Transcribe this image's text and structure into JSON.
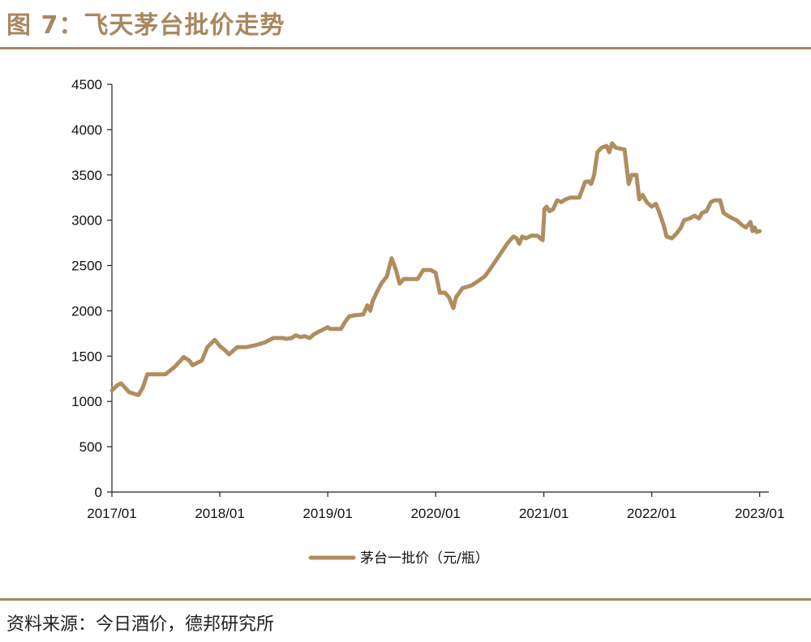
{
  "header": {
    "title": "图 7：飞天茅台批价走势"
  },
  "footer": {
    "source": "资料来源：今日酒价，德邦研究所"
  },
  "colors": {
    "accent": "#a88760",
    "series": "#b08d5f"
  },
  "chart_data": {
    "type": "line",
    "title": "",
    "xlabel": "",
    "ylabel": "",
    "ylim": [
      0,
      4500
    ],
    "yticks": [
      0,
      500,
      1000,
      1500,
      2000,
      2500,
      3000,
      3500,
      4000,
      4500
    ],
    "xlim": [
      "2017-01",
      "2023-02"
    ],
    "xticks": [
      "2017/01",
      "2018/01",
      "2019/01",
      "2020/01",
      "2021/01",
      "2022/01",
      "2023/01"
    ],
    "grid": false,
    "legend": "bottom",
    "series": [
      {
        "name": "茅台一批价（元/瓶）",
        "points": [
          [
            "2017-01-01",
            1120
          ],
          [
            "2017-01-20",
            1180
          ],
          [
            "2017-02-01",
            1200
          ],
          [
            "2017-02-15",
            1150
          ],
          [
            "2017-03-01",
            1100
          ],
          [
            "2017-04-01",
            1070
          ],
          [
            "2017-04-15",
            1150
          ],
          [
            "2017-05-01",
            1300
          ],
          [
            "2017-06-01",
            1300
          ],
          [
            "2017-07-01",
            1300
          ],
          [
            "2017-08-01",
            1380
          ],
          [
            "2017-09-01",
            1490
          ],
          [
            "2017-09-20",
            1450
          ],
          [
            "2017-10-01",
            1400
          ],
          [
            "2017-11-01",
            1450
          ],
          [
            "2017-11-20",
            1600
          ],
          [
            "2017-12-15",
            1680
          ],
          [
            "2018-01-01",
            1610
          ],
          [
            "2018-01-20",
            1560
          ],
          [
            "2018-02-01",
            1520
          ],
          [
            "2018-03-01",
            1600
          ],
          [
            "2018-04-01",
            1600
          ],
          [
            "2018-05-01",
            1620
          ],
          [
            "2018-06-01",
            1650
          ],
          [
            "2018-07-01",
            1700
          ],
          [
            "2018-08-01",
            1700
          ],
          [
            "2018-08-15",
            1690
          ],
          [
            "2018-09-01",
            1700
          ],
          [
            "2018-09-15",
            1730
          ],
          [
            "2018-10-01",
            1710
          ],
          [
            "2018-10-15",
            1720
          ],
          [
            "2018-11-01",
            1700
          ],
          [
            "2018-11-15",
            1740
          ],
          [
            "2018-12-01",
            1770
          ],
          [
            "2018-12-15",
            1790
          ],
          [
            "2019-01-01",
            1820
          ],
          [
            "2019-01-10",
            1800
          ],
          [
            "2019-02-01",
            1800
          ],
          [
            "2019-02-15",
            1800
          ],
          [
            "2019-03-01",
            1880
          ],
          [
            "2019-03-15",
            1940
          ],
          [
            "2019-04-01",
            1950
          ],
          [
            "2019-05-01",
            1960
          ],
          [
            "2019-05-15",
            2060
          ],
          [
            "2019-05-25",
            2000
          ],
          [
            "2019-06-01",
            2100
          ],
          [
            "2019-06-15",
            2200
          ],
          [
            "2019-07-01",
            2300
          ],
          [
            "2019-07-20",
            2380
          ],
          [
            "2019-08-05",
            2580
          ],
          [
            "2019-08-20",
            2450
          ],
          [
            "2019-09-01",
            2300
          ],
          [
            "2019-09-15",
            2350
          ],
          [
            "2019-10-01",
            2350
          ],
          [
            "2019-11-01",
            2350
          ],
          [
            "2019-11-20",
            2450
          ],
          [
            "2019-12-15",
            2450
          ],
          [
            "2020-01-01",
            2420
          ],
          [
            "2020-01-15",
            2200
          ],
          [
            "2020-02-01",
            2200
          ],
          [
            "2020-02-15",
            2150
          ],
          [
            "2020-03-01",
            2030
          ],
          [
            "2020-03-10",
            2150
          ],
          [
            "2020-04-01",
            2250
          ],
          [
            "2020-05-01",
            2280
          ],
          [
            "2020-05-20",
            2320
          ],
          [
            "2020-06-15",
            2380
          ],
          [
            "2020-07-01",
            2450
          ],
          [
            "2020-08-01",
            2600
          ],
          [
            "2020-09-01",
            2750
          ],
          [
            "2020-09-20",
            2820
          ],
          [
            "2020-10-01",
            2800
          ],
          [
            "2020-10-10",
            2740
          ],
          [
            "2020-10-20",
            2820
          ],
          [
            "2020-11-01",
            2800
          ],
          [
            "2020-11-20",
            2830
          ],
          [
            "2020-12-10",
            2830
          ],
          [
            "2020-12-20",
            2800
          ],
          [
            "2020-12-28",
            2780
          ],
          [
            "2021-01-03",
            3120
          ],
          [
            "2021-01-10",
            3150
          ],
          [
            "2021-01-20",
            3100
          ],
          [
            "2021-02-01",
            3120
          ],
          [
            "2021-02-15",
            3220
          ],
          [
            "2021-03-01",
            3200
          ],
          [
            "2021-03-15",
            3230
          ],
          [
            "2021-04-01",
            3250
          ],
          [
            "2021-05-01",
            3250
          ],
          [
            "2021-05-20",
            3420
          ],
          [
            "2021-06-01",
            3430
          ],
          [
            "2021-06-10",
            3400
          ],
          [
            "2021-06-20",
            3500
          ],
          [
            "2021-07-01",
            3750
          ],
          [
            "2021-07-15",
            3800
          ],
          [
            "2021-08-01",
            3820
          ],
          [
            "2021-08-10",
            3750
          ],
          [
            "2021-08-20",
            3850
          ],
          [
            "2021-09-01",
            3800
          ],
          [
            "2021-10-01",
            3780
          ],
          [
            "2021-10-15",
            3400
          ],
          [
            "2021-10-25",
            3500
          ],
          [
            "2021-11-10",
            3500
          ],
          [
            "2021-11-20",
            3230
          ],
          [
            "2021-12-01",
            3280
          ],
          [
            "2021-12-15",
            3200
          ],
          [
            "2022-01-01",
            3150
          ],
          [
            "2022-01-15",
            3180
          ],
          [
            "2022-01-25",
            3100
          ],
          [
            "2022-02-10",
            2950
          ],
          [
            "2022-02-20",
            2820
          ],
          [
            "2022-03-10",
            2800
          ],
          [
            "2022-03-25",
            2850
          ],
          [
            "2022-04-10",
            2920
          ],
          [
            "2022-04-20",
            3000
          ],
          [
            "2022-05-10",
            3020
          ],
          [
            "2022-05-25",
            3050
          ],
          [
            "2022-06-10",
            3020
          ],
          [
            "2022-06-20",
            3080
          ],
          [
            "2022-07-05",
            3100
          ],
          [
            "2022-07-20",
            3200
          ],
          [
            "2022-08-01",
            3220
          ],
          [
            "2022-08-20",
            3220
          ],
          [
            "2022-09-01",
            3080
          ],
          [
            "2022-09-15",
            3050
          ],
          [
            "2022-10-01",
            3020
          ],
          [
            "2022-10-15",
            3000
          ],
          [
            "2022-11-01",
            2950
          ],
          [
            "2022-11-15",
            2920
          ],
          [
            "2022-12-01",
            2980
          ],
          [
            "2022-12-08",
            2880
          ],
          [
            "2022-12-15",
            2920
          ],
          [
            "2022-12-22",
            2870
          ],
          [
            "2023-01-01",
            2880
          ]
        ]
      }
    ]
  }
}
